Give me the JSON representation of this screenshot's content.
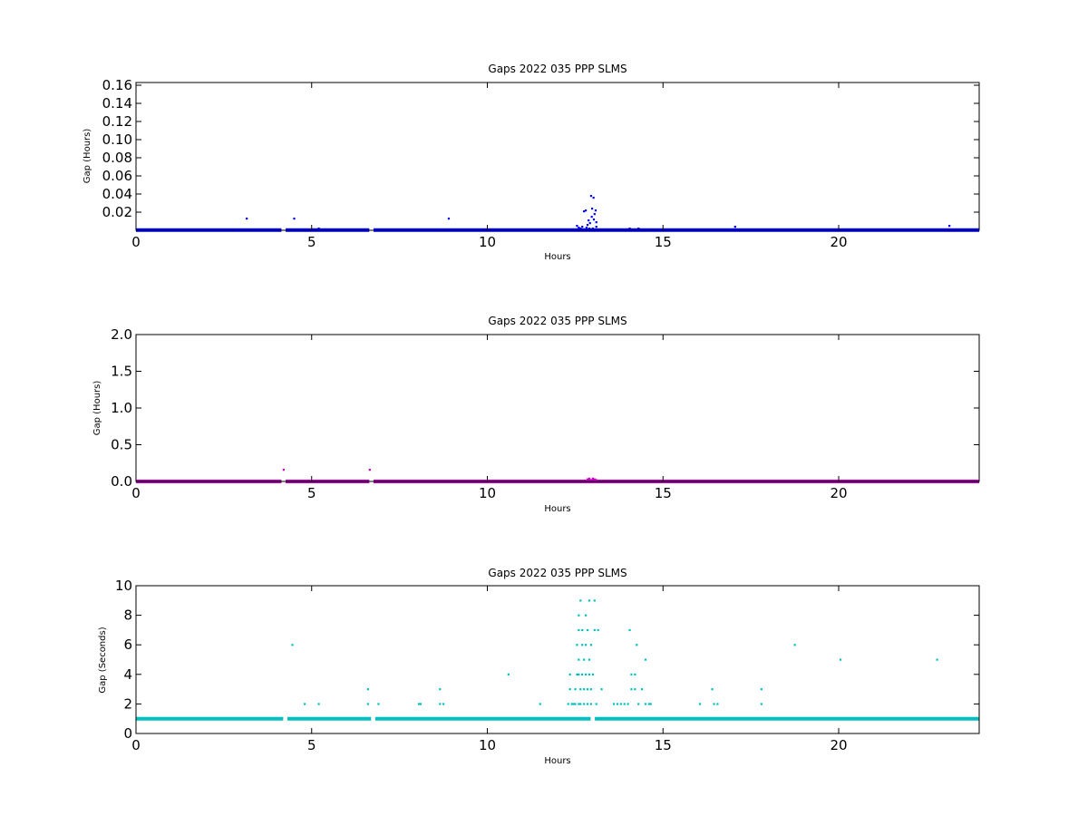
{
  "chart_data": [
    {
      "type": "scatter",
      "title": "Gaps 2022 035 PPP  SLMS",
      "xlabel": "Hours",
      "ylabel": "Gap (Hours)",
      "xlim": [
        0,
        24
      ],
      "ylim": [
        0,
        0.163
      ],
      "xticks": [
        0,
        5,
        10,
        15,
        20
      ],
      "yticks": [
        0.02,
        0.04,
        0.06,
        0.08,
        0.1,
        0.12,
        0.14,
        0.16
      ],
      "ytick_labels": [
        "0.02",
        "0.04",
        "0.06",
        "0.08",
        "0.10",
        "0.12",
        "0.14",
        "0.16"
      ],
      "color": "#0000ff",
      "baseline": {
        "value": 0.0003,
        "gaps_at": [
          4.2,
          6.7
        ]
      },
      "points": [
        [
          3.15,
          0.013
        ],
        [
          4.5,
          0.013
        ],
        [
          5.2,
          0.002
        ],
        [
          8.9,
          0.013
        ],
        [
          12.55,
          0.005
        ],
        [
          12.6,
          0.003
        ],
        [
          12.65,
          0.002
        ],
        [
          12.7,
          0.004
        ],
        [
          12.75,
          0.021
        ],
        [
          12.8,
          0.022
        ],
        [
          12.82,
          0.003
        ],
        [
          12.85,
          0.006
        ],
        [
          12.88,
          0.011
        ],
        [
          12.9,
          0.002
        ],
        [
          12.92,
          0.008
        ],
        [
          12.95,
          0.038
        ],
        [
          12.97,
          0.015
        ],
        [
          12.98,
          0.024
        ],
        [
          13.0,
          0.002
        ],
        [
          13.02,
          0.036
        ],
        [
          13.03,
          0.012
        ],
        [
          13.05,
          0.018
        ],
        [
          13.08,
          0.022
        ],
        [
          13.1,
          0.004
        ],
        [
          13.1,
          0.009
        ],
        [
          14.05,
          0.002
        ],
        [
          14.3,
          0.002
        ],
        [
          17.05,
          0.004
        ],
        [
          23.15,
          0.005
        ]
      ]
    },
    {
      "type": "scatter",
      "title": "Gaps 2022 035 PPP  SLMS",
      "xlabel": "Hours",
      "ylabel": "Gap (Hours)",
      "xlim": [
        0,
        24
      ],
      "ylim": [
        0,
        2.0
      ],
      "xticks": [
        0,
        5,
        10,
        15,
        20
      ],
      "yticks": [
        0.0,
        0.5,
        1.0,
        1.5,
        2.0
      ],
      "ytick_labels": [
        "0.0",
        "0.5",
        "1.0",
        "1.5",
        "2.0"
      ],
      "color": "#bf00bf",
      "baseline": {
        "value": 0.0003,
        "gaps_at": [
          4.2,
          6.7
        ]
      },
      "points": [
        [
          4.2,
          0.16
        ],
        [
          6.65,
          0.16
        ],
        [
          12.85,
          0.03
        ],
        [
          12.9,
          0.04
        ],
        [
          12.95,
          0.02
        ],
        [
          13.0,
          0.04
        ],
        [
          13.05,
          0.03
        ],
        [
          13.1,
          0.02
        ]
      ]
    },
    {
      "type": "scatter",
      "title": "Gaps 2022 035 PPP  SLMS",
      "xlabel": "Hours",
      "ylabel": "Gap (Seconds)",
      "xlim": [
        0,
        24
      ],
      "ylim": [
        0,
        10
      ],
      "xticks": [
        0,
        5,
        10,
        15,
        20
      ],
      "yticks": [
        0,
        2,
        4,
        6,
        8,
        10
      ],
      "ytick_labels": [
        "0",
        "2",
        "4",
        "6",
        "8",
        "10"
      ],
      "color": "#00bfbf",
      "baseline": {
        "value": 1,
        "gaps_at": [
          4.25,
          6.75,
          13.0
        ]
      },
      "points": [
        [
          4.45,
          6
        ],
        [
          4.8,
          2
        ],
        [
          5.2,
          2
        ],
        [
          6.6,
          3
        ],
        [
          6.6,
          2
        ],
        [
          6.9,
          2
        ],
        [
          8.05,
          2
        ],
        [
          8.1,
          2
        ],
        [
          8.65,
          3
        ],
        [
          8.65,
          2
        ],
        [
          8.75,
          2
        ],
        [
          10.6,
          4
        ],
        [
          11.5,
          2
        ],
        [
          12.3,
          2
        ],
        [
          12.35,
          3
        ],
        [
          12.35,
          4
        ],
        [
          12.4,
          2
        ],
        [
          12.45,
          2
        ],
        [
          12.5,
          2
        ],
        [
          12.5,
          3
        ],
        [
          12.55,
          4
        ],
        [
          12.55,
          6
        ],
        [
          12.6,
          2
        ],
        [
          12.6,
          4
        ],
        [
          12.6,
          5
        ],
        [
          12.6,
          7
        ],
        [
          12.6,
          8
        ],
        [
          12.65,
          9
        ],
        [
          12.65,
          2
        ],
        [
          12.65,
          3
        ],
        [
          12.7,
          4
        ],
        [
          12.7,
          6
        ],
        [
          12.7,
          7
        ],
        [
          12.75,
          2
        ],
        [
          12.75,
          3
        ],
        [
          12.75,
          5
        ],
        [
          12.8,
          4
        ],
        [
          12.8,
          6
        ],
        [
          12.8,
          8
        ],
        [
          12.85,
          2
        ],
        [
          12.85,
          3
        ],
        [
          12.85,
          7
        ],
        [
          12.9,
          4
        ],
        [
          12.9,
          5
        ],
        [
          12.9,
          9
        ],
        [
          12.95,
          2
        ],
        [
          12.95,
          3
        ],
        [
          12.95,
          6
        ],
        [
          13.0,
          4
        ],
        [
          13.05,
          7
        ],
        [
          13.05,
          9
        ],
        [
          13.1,
          2
        ],
        [
          13.15,
          7
        ],
        [
          13.25,
          3
        ],
        [
          13.6,
          2
        ],
        [
          13.7,
          2
        ],
        [
          13.8,
          2
        ],
        [
          13.9,
          2
        ],
        [
          14.0,
          2
        ],
        [
          14.05,
          7
        ],
        [
          14.1,
          3
        ],
        [
          14.1,
          4
        ],
        [
          14.2,
          3
        ],
        [
          14.2,
          4
        ],
        [
          14.25,
          6
        ],
        [
          14.3,
          2
        ],
        [
          14.4,
          3
        ],
        [
          14.5,
          2
        ],
        [
          14.5,
          5
        ],
        [
          14.6,
          2
        ],
        [
          14.65,
          2
        ],
        [
          16.05,
          2
        ],
        [
          16.4,
          3
        ],
        [
          16.45,
          2
        ],
        [
          16.55,
          2
        ],
        [
          17.8,
          3
        ],
        [
          17.8,
          2
        ],
        [
          18.75,
          6
        ],
        [
          20.05,
          5
        ],
        [
          22.8,
          5
        ]
      ]
    }
  ]
}
